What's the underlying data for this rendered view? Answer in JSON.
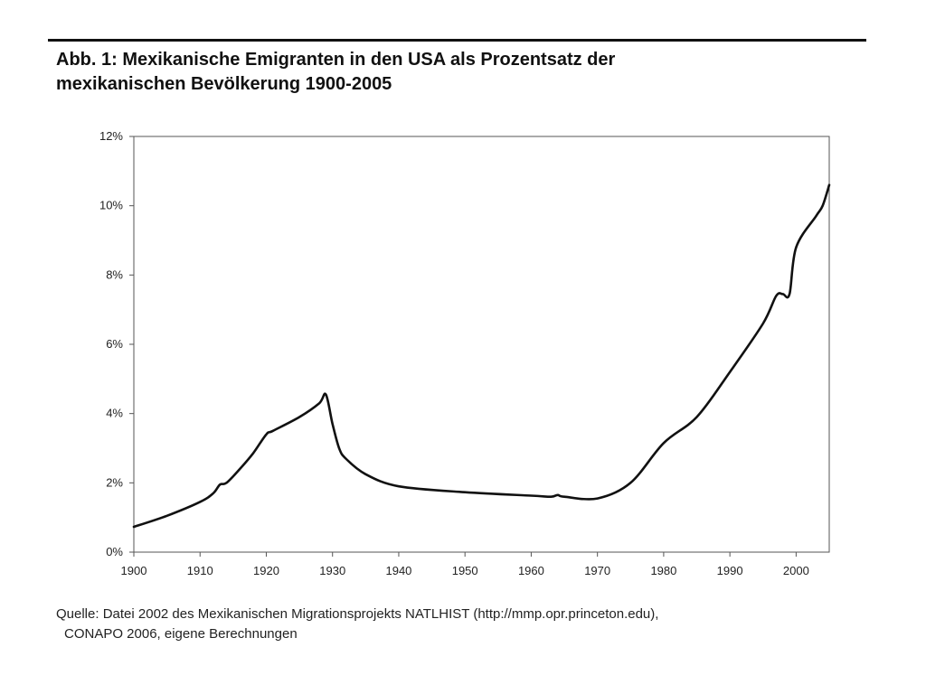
{
  "figure": {
    "title_line1": "Abb. 1: Mexikanische Emigranten in den USA als Prozentsatz der",
    "title_line2": "mexikanischen Bevölkerung 1900-2005",
    "source_line1": "Quelle: Datei 2002 des Mexikanischen Migrationsprojekts NATLHIST  (http://mmp.opr.princeton.edu),",
    "source_line2": "CONAPO 2006, eigene Berechnungen"
  },
  "chart_data": {
    "type": "line",
    "title": "Abb. 1: Mexikanische Emigranten in den USA als Prozentsatz der mexikanischen Bevölkerung 1900-2005",
    "xlabel": "",
    "ylabel": "",
    "xlim": [
      1900,
      2005
    ],
    "ylim": [
      0,
      12
    ],
    "x_ticks": [
      1900,
      1910,
      1920,
      1930,
      1940,
      1950,
      1960,
      1970,
      1980,
      1990,
      2000
    ],
    "y_ticks": [
      0,
      2,
      4,
      6,
      8,
      10,
      12
    ],
    "y_tick_labels": [
      "0%",
      "2%",
      "4%",
      "6%",
      "8%",
      "10%",
      "12%"
    ],
    "grid": false,
    "line_color": "#111111",
    "series": [
      {
        "x": [
          1900,
          1905,
          1910,
          1912,
          1913,
          1914,
          1916,
          1918,
          1920,
          1921,
          1925,
          1928,
          1929,
          1930,
          1931,
          1932,
          1935,
          1940,
          1950,
          1960,
          1963,
          1964,
          1965,
          1970,
          1975,
          1980,
          1985,
          1990,
          1995,
          1997,
          1998,
          1999,
          2000,
          2003,
          2004,
          2005
        ],
        "y": [
          0.73,
          1.05,
          1.45,
          1.7,
          1.95,
          2.0,
          2.4,
          2.85,
          3.4,
          3.5,
          3.9,
          4.3,
          4.55,
          3.7,
          3.0,
          2.7,
          2.25,
          1.9,
          1.73,
          1.63,
          1.6,
          1.65,
          1.6,
          1.55,
          2.0,
          3.15,
          3.9,
          5.2,
          6.6,
          7.4,
          7.45,
          7.45,
          8.8,
          9.7,
          10.0,
          10.6
        ]
      }
    ]
  }
}
